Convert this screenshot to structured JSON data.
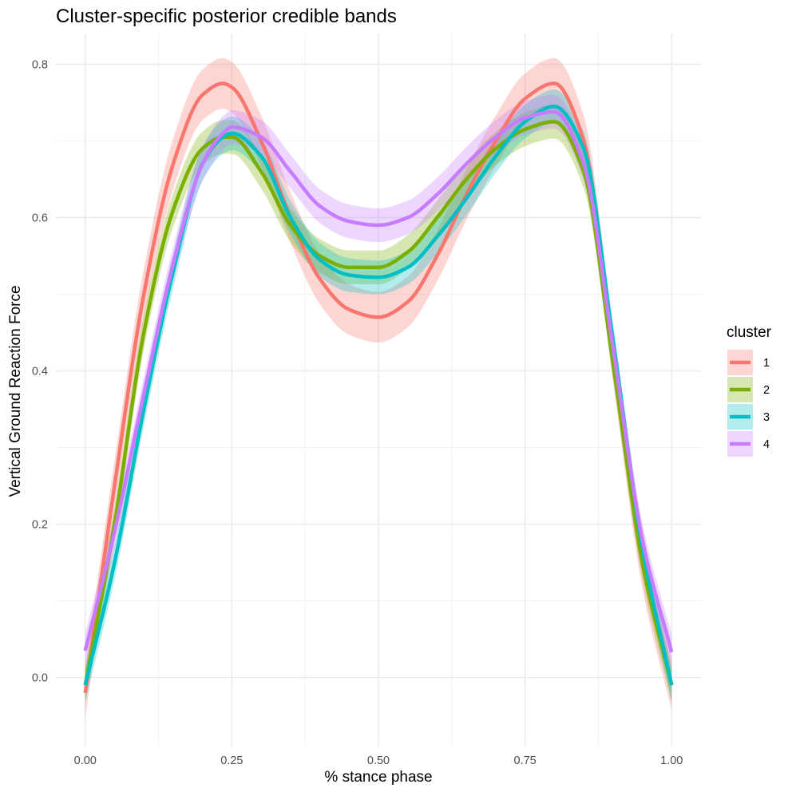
{
  "chart_data": {
    "type": "line",
    "title": "Cluster-specific posterior credible bands",
    "xlabel": "% stance phase",
    "ylabel": "Vertical Ground Reaction Force",
    "xlim": [
      -0.05,
      1.05
    ],
    "ylim": [
      -0.09,
      0.84
    ],
    "x_ticks": [
      0.0,
      0.25,
      0.5,
      0.75,
      1.0
    ],
    "x_tick_labels": [
      "0.00",
      "0.25",
      "0.50",
      "0.75",
      "1.00"
    ],
    "y_ticks": [
      0.0,
      0.2,
      0.4,
      0.6,
      0.8
    ],
    "y_tick_labels": [
      "0.0",
      "0.2",
      "0.4",
      "0.6",
      "0.8"
    ],
    "grid": true,
    "legend": {
      "title": "cluster",
      "position": "right"
    },
    "x": [
      0.0,
      0.05,
      0.1,
      0.15,
      0.2,
      0.235,
      0.25,
      0.3,
      0.35,
      0.4,
      0.45,
      0.5,
      0.55,
      0.6,
      0.65,
      0.7,
      0.75,
      0.8,
      0.85,
      0.9,
      0.95,
      1.0
    ],
    "series": [
      {
        "name": "1",
        "color": "#F8766D",
        "values": [
          -0.02,
          0.25,
          0.5,
          0.67,
          0.76,
          0.775,
          0.77,
          0.7,
          0.6,
          0.52,
          0.48,
          0.47,
          0.49,
          0.55,
          0.63,
          0.7,
          0.755,
          0.775,
          0.7,
          0.42,
          0.15,
          -0.01
        ],
        "band": 0.033
      },
      {
        "name": "2",
        "color": "#7CAE00",
        "values": [
          -0.01,
          0.2,
          0.45,
          0.61,
          0.69,
          0.705,
          0.705,
          0.66,
          0.59,
          0.55,
          0.535,
          0.535,
          0.555,
          0.6,
          0.65,
          0.69,
          0.715,
          0.725,
          0.66,
          0.41,
          0.15,
          -0.01
        ],
        "band": 0.022
      },
      {
        "name": "3",
        "color": "#00BFC4",
        "values": [
          -0.01,
          0.15,
          0.35,
          0.53,
          0.67,
          0.705,
          0.71,
          0.68,
          0.6,
          0.545,
          0.525,
          0.522,
          0.535,
          0.575,
          0.625,
          0.68,
          0.725,
          0.745,
          0.69,
          0.44,
          0.17,
          -0.01
        ],
        "band": 0.022
      },
      {
        "name": "4",
        "color": "#C77CFF",
        "values": [
          0.035,
          0.19,
          0.37,
          0.54,
          0.67,
          0.71,
          0.718,
          0.705,
          0.66,
          0.615,
          0.595,
          0.59,
          0.6,
          0.63,
          0.67,
          0.705,
          0.73,
          0.738,
          0.67,
          0.43,
          0.18,
          0.033
        ],
        "band": 0.022
      }
    ]
  }
}
